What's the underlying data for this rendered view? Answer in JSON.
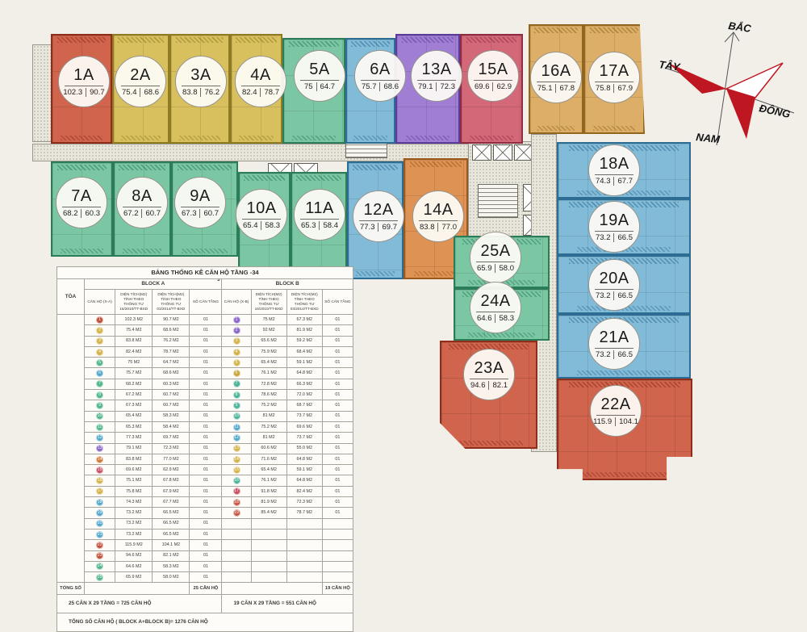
{
  "palette": {
    "red": "#c0503a",
    "yellow": "#d4b44a",
    "green": "#54b68b",
    "teal": "#4fb39a",
    "blue": "#55a8cb",
    "purple": "#8b68c8",
    "orange": "#d0793a",
    "pink": "#c94f63",
    "redorange": "#c55743"
  },
  "compass": {
    "north": "BẮC",
    "west": "TÂY",
    "east": "ĐÔNG",
    "south": "NAM"
  },
  "plan": {
    "units": [
      {
        "name": "1A",
        "area1": "102.3",
        "area2": "90.7"
      },
      {
        "name": "2A",
        "area1": "75.4",
        "area2": "68.6"
      },
      {
        "name": "3A",
        "area1": "83.8",
        "area2": "76.2"
      },
      {
        "name": "4A",
        "area1": "82.4",
        "area2": "78.7"
      },
      {
        "name": "5A",
        "area1": "75",
        "area2": "64.7"
      },
      {
        "name": "6A",
        "area1": "75.7",
        "area2": "68.6"
      },
      {
        "name": "7A",
        "area1": "68.2",
        "area2": "60.3"
      },
      {
        "name": "8A",
        "area1": "67.2",
        "area2": "60.7"
      },
      {
        "name": "9A",
        "area1": "67.3",
        "area2": "60.7"
      },
      {
        "name": "10A",
        "area1": "65.4",
        "area2": "58.3"
      },
      {
        "name": "11A",
        "area1": "65.3",
        "area2": "58.4"
      },
      {
        "name": "12A",
        "area1": "77.3",
        "area2": "69.7"
      },
      {
        "name": "13A",
        "area1": "79.1",
        "area2": "72.3"
      },
      {
        "name": "14A",
        "area1": "83.8",
        "area2": "77.0"
      },
      {
        "name": "15A",
        "area1": "69.6",
        "area2": "62.9"
      },
      {
        "name": "16A",
        "area1": "75.1",
        "area2": "67.8"
      },
      {
        "name": "17A",
        "area1": "75.8",
        "area2": "67.9"
      },
      {
        "name": "18A",
        "area1": "74.3",
        "area2": "67.7"
      },
      {
        "name": "19A",
        "area1": "73.2",
        "area2": "66.5"
      },
      {
        "name": "20A",
        "area1": "73.2",
        "area2": "66.5"
      },
      {
        "name": "21A",
        "area1": "73.2",
        "area2": "66.5"
      },
      {
        "name": "22A",
        "area1": "115.9",
        "area2": "104.1"
      },
      {
        "name": "23A",
        "area1": "94.6",
        "area2": "82.1"
      },
      {
        "name": "24A",
        "area1": "64.6",
        "area2": "58.3"
      },
      {
        "name": "25A",
        "area1": "65.9",
        "area2": "58.0"
      }
    ]
  },
  "table": {
    "title": "BẢNG THỐNG KÊ CĂN HỘ TẦNG  -34",
    "stray_digit": "3",
    "toa": "TÒA",
    "block_a": "BLOCK A",
    "block_b": "BLOCK B",
    "col_can_ho_a": "CĂN HỘ (X-A)",
    "col_dt1": "DIỆN TÍCH(M2) TÍNH THEO THÔNG TƯ 16/2010/TT-BXD",
    "col_dt2": "DIỆN TÍCH(M2) TÍNH THEO THÔNG TƯ 03/2014/TT-BXD",
    "col_so_can": "SỐ CĂN TẦNG",
    "col_can_ho_b": "CĂN HỘ (X-B)",
    "rows": [
      {
        "n": "1",
        "color": "#c0503a",
        "a1": "102.3 M2",
        "a2": "90.7 M2",
        "ac": "01",
        "bn": "1",
        "bcolor": "#8b68c8",
        "b1": "75 M2",
        "b2": "67.3 M2",
        "bc": "01"
      },
      {
        "n": "2",
        "color": "#d4b44a",
        "a1": "75.4 M2",
        "a2": "68.6 M2",
        "ac": "01",
        "bn": "2",
        "bcolor": "#8b68c8",
        "b1": "92 M2",
        "b2": "81.9 M2",
        "bc": "01"
      },
      {
        "n": "3",
        "color": "#d4b44a",
        "a1": "83.8 M2",
        "a2": "76.2 M2",
        "ac": "01",
        "bn": "3",
        "bcolor": "#d4b44a",
        "b1": "65.6 M2",
        "b2": "59.2 M2",
        "bc": "01"
      },
      {
        "n": "4",
        "color": "#d4b44a",
        "a1": "82.4 M2",
        "a2": "78.7 M2",
        "ac": "01",
        "bn": "4",
        "bcolor": "#d4b44a",
        "b1": "75.9 M2",
        "b2": "68.4 M2",
        "bc": "01"
      },
      {
        "n": "5",
        "color": "#54b68b",
        "a1": "75 M2",
        "a2": "64.7 M2",
        "ac": "01",
        "bn": "5",
        "bcolor": "#d4b44a",
        "b1": "65.4 M2",
        "b2": "59.1 M2",
        "bc": "01"
      },
      {
        "n": "6",
        "color": "#55a8cb",
        "a1": "75.7 M2",
        "a2": "68.6 M2",
        "ac": "01",
        "bn": "6",
        "bcolor": "#c9a43c",
        "b1": "76.1 M2",
        "b2": "64.8 M2",
        "bc": "01"
      },
      {
        "n": "7",
        "color": "#54b68b",
        "a1": "68.2 M2",
        "a2": "60.3 M2",
        "ac": "01",
        "bn": "7",
        "bcolor": "#4fb39a",
        "b1": "72.8 M2",
        "b2": "66.3 M2",
        "bc": "01"
      },
      {
        "n": "8",
        "color": "#54b68b",
        "a1": "67.2 M2",
        "a2": "60.7 M2",
        "ac": "01",
        "bn": "8",
        "bcolor": "#4fb39a",
        "b1": "78.6 M2",
        "b2": "72.0 M2",
        "bc": "01"
      },
      {
        "n": "9",
        "color": "#54b68b",
        "a1": "67.3 M2",
        "a2": "60.7 M2",
        "ac": "01",
        "bn": "9",
        "bcolor": "#4fb39a",
        "b1": "75.2 M2",
        "b2": "68.7 M2",
        "bc": "01"
      },
      {
        "n": "10",
        "color": "#54b68b",
        "a1": "65.4 M2",
        "a2": "58.3 M2",
        "ac": "01",
        "bn": "10",
        "bcolor": "#4fb39a",
        "b1": "81 M2",
        "b2": "73.7 M2",
        "bc": "01"
      },
      {
        "n": "11",
        "color": "#54b68b",
        "a1": "65.3 M2",
        "a2": "58.4 M2",
        "ac": "01",
        "bn": "11",
        "bcolor": "#55a8cb",
        "b1": "75.2 M2",
        "b2": "69.6 M2",
        "bc": "01"
      },
      {
        "n": "12",
        "color": "#55a8cb",
        "a1": "77.3 M2",
        "a2": "69.7 M2",
        "ac": "01",
        "bn": "12",
        "bcolor": "#55a8cb",
        "b1": "81 M2",
        "b2": "73.7 M2",
        "bc": "01"
      },
      {
        "n": "13",
        "color": "#8b68c8",
        "a1": "79.1 M2",
        "a2": "72.3 M2",
        "ac": "01",
        "bn": "13",
        "bcolor": "#d4b44a",
        "b1": "60.6 M2",
        "b2": "55.0 M2",
        "bc": "01"
      },
      {
        "n": "14",
        "color": "#d0793a",
        "a1": "83.8 M2",
        "a2": "77.0 M2",
        "ac": "01",
        "bn": "14",
        "bcolor": "#d4b44a",
        "b1": "71.6 M2",
        "b2": "64.8 M2",
        "bc": "01"
      },
      {
        "n": "15",
        "color": "#c94f63",
        "a1": "69.6 M2",
        "a2": "62.9 M2",
        "ac": "01",
        "bn": "15",
        "bcolor": "#d4b44a",
        "b1": "65.4 M2",
        "b2": "59.1 M2",
        "bc": "01"
      },
      {
        "n": "16",
        "color": "#d4b44a",
        "a1": "75.1 M2",
        "a2": "67.8 M2",
        "ac": "01",
        "bn": "16",
        "bcolor": "#4fb39a",
        "b1": "76.1 M2",
        "b2": "64.8 M2",
        "bc": "01"
      },
      {
        "n": "17",
        "color": "#d4b44a",
        "a1": "75.8 M2",
        "a2": "67.9 M2",
        "ac": "01",
        "bn": "17",
        "bcolor": "#c94f63",
        "b1": "91.8 M2",
        "b2": "82.4 M2",
        "bc": "01"
      },
      {
        "n": "18",
        "color": "#55a8cb",
        "a1": "74.3 M2",
        "a2": "67.7 M2",
        "ac": "01",
        "bn": "18",
        "bcolor": "#c55743",
        "b1": "81.9 M2",
        "b2": "72.3 M2",
        "bc": "01"
      },
      {
        "n": "19",
        "color": "#55a8cb",
        "a1": "73.2 M2",
        "a2": "66.5 M2",
        "ac": "01",
        "bn": "19",
        "bcolor": "#c55743",
        "b1": "85.4 M2",
        "b2": "78.7 M2",
        "bc": "01"
      },
      {
        "n": "20",
        "color": "#55a8cb",
        "a1": "73.2 M2",
        "a2": "66.5 M2",
        "ac": "01",
        "bn": null,
        "bcolor": null,
        "b1": "",
        "b2": "",
        "bc": ""
      },
      {
        "n": "21",
        "color": "#55a8cb",
        "a1": "73.2 M2",
        "a2": "66.5 M2",
        "ac": "01",
        "bn": null,
        "bcolor": null,
        "b1": "",
        "b2": "",
        "bc": ""
      },
      {
        "n": "22",
        "color": "#c0503a",
        "a1": "115.9 M2",
        "a2": "104.1 M2",
        "ac": "01",
        "bn": null,
        "bcolor": null,
        "b1": "",
        "b2": "",
        "bc": ""
      },
      {
        "n": "23",
        "color": "#c0503a",
        "a1": "94.6 M2",
        "a2": "82.1 M2",
        "ac": "01",
        "bn": null,
        "bcolor": null,
        "b1": "",
        "b2": "",
        "bc": ""
      },
      {
        "n": "24",
        "color": "#54b68b",
        "a1": "64.6 M2",
        "a2": "58.3 M2",
        "ac": "01",
        "bn": null,
        "bcolor": null,
        "b1": "",
        "b2": "",
        "bc": ""
      },
      {
        "n": "25",
        "color": "#54b68b",
        "a1": "65.9 M2",
        "a2": "58.0 M2",
        "ac": "01",
        "bn": null,
        "bcolor": null,
        "b1": "",
        "b2": "",
        "bc": ""
      }
    ],
    "total_label": "TỔNG SỐ",
    "total_a": "25 CĂN HỘ",
    "total_b": "19 CĂN HỘ",
    "formula_a": "25 CĂN X 29 TẦNG = 725 CĂN HỘ",
    "formula_b": "19 CĂN X 29 TẦNG = 551 CĂN HỘ",
    "grand_total": "TỔNG SỐ CĂN HỘ ( BLOCK A+BLOCK B)= 1276 CĂN HỘ"
  }
}
